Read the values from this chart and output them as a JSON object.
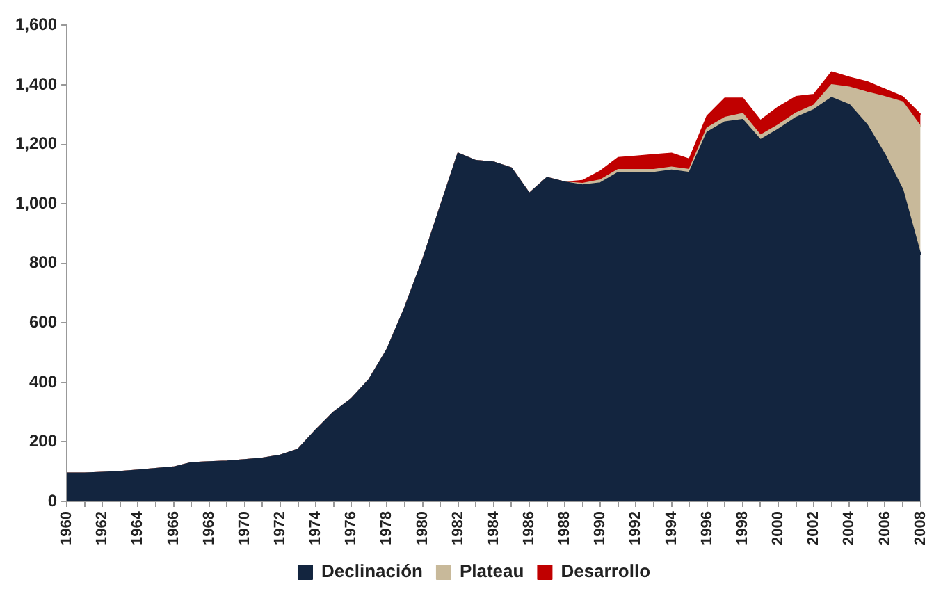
{
  "chart_data": {
    "type": "area",
    "stacked": true,
    "categories": [
      "1960",
      null,
      "1962",
      null,
      "1964",
      null,
      "1966",
      null,
      "1968",
      null,
      "1970",
      null,
      "1972",
      null,
      "1974",
      null,
      "1976",
      null,
      "1978",
      null,
      "1980",
      null,
      "1982",
      null,
      "1984",
      null,
      "1986",
      null,
      "1988",
      null,
      "1990",
      null,
      "1992",
      null,
      "1994",
      null,
      "1996",
      null,
      "1998",
      null,
      "2000",
      null,
      "2002",
      null,
      "2004",
      null,
      "2006",
      null,
      "2008"
    ],
    "series": [
      {
        "name": "Declinación",
        "color": "#13253f",
        "values": [
          95,
          95,
          97,
          100,
          105,
          110,
          115,
          130,
          133,
          135,
          140,
          145,
          155,
          175,
          240,
          300,
          345,
          410,
          510,
          650,
          810,
          990,
          1170,
          1145,
          1140,
          1120,
          1035,
          1088,
          1073,
          1063,
          1070,
          1105,
          1105,
          1105,
          1113,
          1105,
          1240,
          1275,
          1283,
          1215,
          1250,
          1290,
          1316,
          1357,
          1333,
          1265,
          1165,
          1047,
          830
        ]
      },
      {
        "name": "Plateau",
        "color": "#c8b99a",
        "values": [
          0,
          0,
          0,
          0,
          0,
          0,
          0,
          0,
          0,
          0,
          0,
          0,
          0,
          0,
          0,
          0,
          0,
          0,
          0,
          0,
          0,
          0,
          0,
          0,
          0,
          0,
          0,
          0,
          0,
          5,
          10,
          10,
          10,
          10,
          10,
          10,
          15,
          15,
          20,
          15,
          15,
          15,
          15,
          43,
          59,
          110,
          195,
          295,
          430
        ]
      },
      {
        "name": "Desarrollo",
        "color": "#c00000",
        "values": [
          0,
          0,
          0,
          0,
          0,
          0,
          0,
          0,
          0,
          0,
          0,
          0,
          0,
          0,
          0,
          0,
          0,
          0,
          0,
          0,
          0,
          0,
          0,
          0,
          0,
          0,
          0,
          0,
          0,
          10,
          30,
          40,
          45,
          50,
          47,
          35,
          40,
          65,
          52,
          50,
          60,
          55,
          36,
          43,
          33,
          35,
          25,
          18,
          40
        ]
      }
    ],
    "ylim": [
      0,
      1600
    ],
    "yticks": [
      0,
      {
        "value": 200,
        "label": "200"
      },
      {
        "value": 400,
        "label": "400"
      },
      {
        "value": 600,
        "label": "600"
      },
      {
        "value": 800,
        "label": "800"
      },
      {
        "value": 1000,
        "label": "1,000"
      },
      {
        "value": 1200,
        "label": "1,200"
      },
      {
        "value": 1400,
        "label": "1,400"
      },
      {
        "value": 1600,
        "label": "1,600"
      }
    ],
    "grid": false,
    "legend": "bottom"
  }
}
